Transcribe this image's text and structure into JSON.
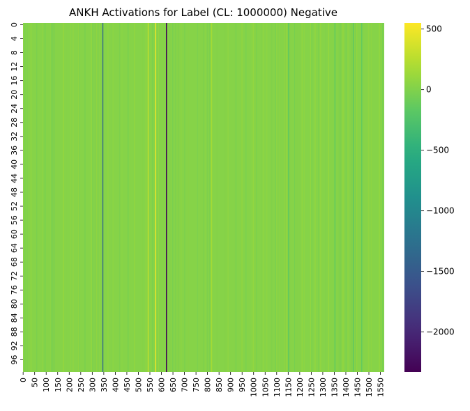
{
  "chart_data": {
    "type": "heatmap",
    "title": "ANKH Activations for Label (CL: 1000000) Negative",
    "xlabel": "",
    "ylabel": "",
    "x_range": [
      0,
      1567
    ],
    "y_range": [
      0,
      100
    ],
    "x_ticks": [
      "0",
      "50",
      "100",
      "150",
      "200",
      "250",
      "300",
      "350",
      "400",
      "450",
      "500",
      "550",
      "600",
      "650",
      "700",
      "750",
      "800",
      "850",
      "900",
      "950",
      "1000",
      "1050",
      "1100",
      "1150",
      "1200",
      "1250",
      "1300",
      "1350",
      "1400",
      "1450",
      "1500",
      "1550"
    ],
    "y_ticks": [
      "0",
      "4",
      "8",
      "12",
      "16",
      "20",
      "24",
      "28",
      "32",
      "36",
      "40",
      "44",
      "48",
      "52",
      "56",
      "60",
      "64",
      "68",
      "72",
      "76",
      "80",
      "84",
      "88",
      "92",
      "96"
    ],
    "colormap": "viridis",
    "colorbar": {
      "min": -2330,
      "max": 550,
      "ticks": [
        500,
        0,
        -500,
        -1000,
        -1500,
        -2000
      ],
      "tick_labels": [
        "500",
        "0",
        "−500",
        "−1000",
        "−1500",
        "−2000"
      ]
    },
    "background_value": 25,
    "column_features": [
      {
        "x": 346,
        "value": -1350
      },
      {
        "x": 543,
        "value": 280
      },
      {
        "x": 575,
        "value": 520
      },
      {
        "x": 622,
        "value": -2330
      },
      {
        "x": 818,
        "value": 180
      },
      {
        "x": 1152,
        "value": -180
      },
      {
        "x": 1353,
        "value": -160
      },
      {
        "x": 1432,
        "value": -220
      },
      {
        "x": 1469,
        "value": -140
      }
    ]
  }
}
